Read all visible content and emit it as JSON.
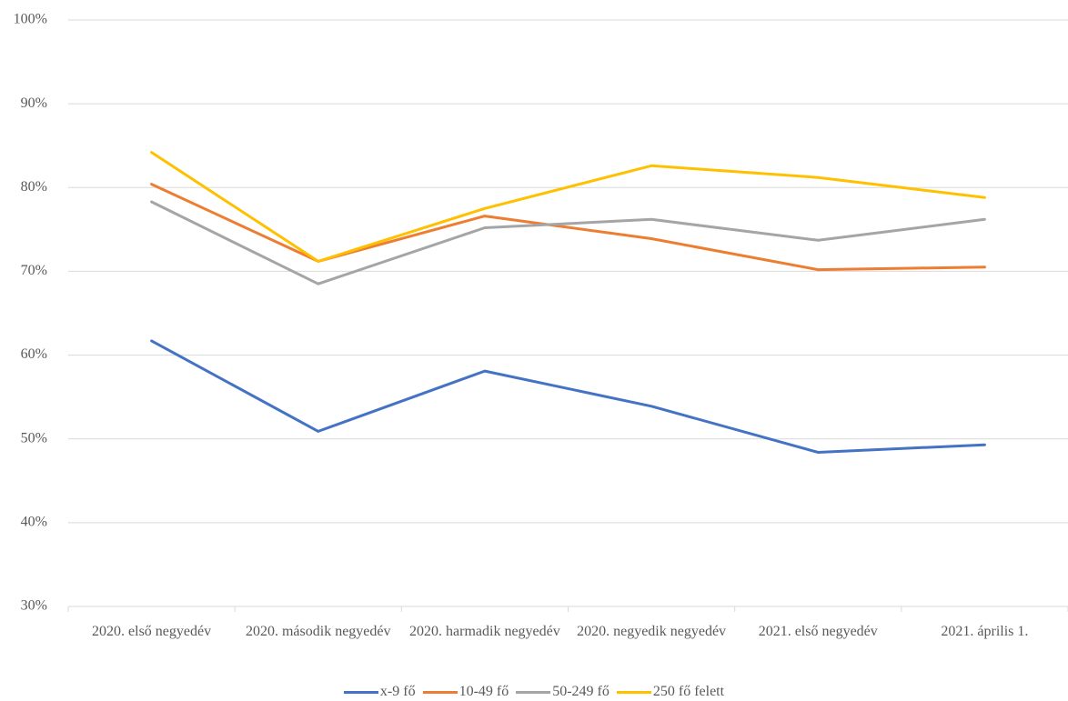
{
  "chart_data": {
    "type": "line",
    "categories": [
      "2020. első negyedév",
      "2020. második negyedév",
      "2020. harmadik negyedév",
      "2020. negyedik negyedév",
      "2021. első negyedév",
      "2021. április 1."
    ],
    "series": [
      {
        "name": "x-9 fő",
        "color": "#4472c4",
        "values": [
          61.7,
          50.9,
          58.1,
          53.9,
          48.4,
          49.3
        ]
      },
      {
        "name": "10-49 fő",
        "color": "#ed7d31",
        "values": [
          80.4,
          71.2,
          76.6,
          73.9,
          70.2,
          70.5
        ]
      },
      {
        "name": "50-249 fő",
        "color": "#a5a5a5",
        "values": [
          78.3,
          68.5,
          75.2,
          76.2,
          73.7,
          76.2
        ]
      },
      {
        "name": "250 fő felett",
        "color": "#ffc000",
        "values": [
          84.2,
          71.2,
          77.5,
          82.6,
          81.2,
          78.8
        ]
      }
    ],
    "ylim": [
      30,
      100
    ],
    "yticks": [
      {
        "value": 30,
        "label": "30%"
      },
      {
        "value": 40,
        "label": "40%"
      },
      {
        "value": 50,
        "label": "50%"
      },
      {
        "value": 60,
        "label": "60%"
      },
      {
        "value": 70,
        "label": "70%"
      },
      {
        "value": 80,
        "label": "80%"
      },
      {
        "value": 90,
        "label": "90%"
      },
      {
        "value": 100,
        "label": "100%"
      }
    ],
    "grid": true
  }
}
